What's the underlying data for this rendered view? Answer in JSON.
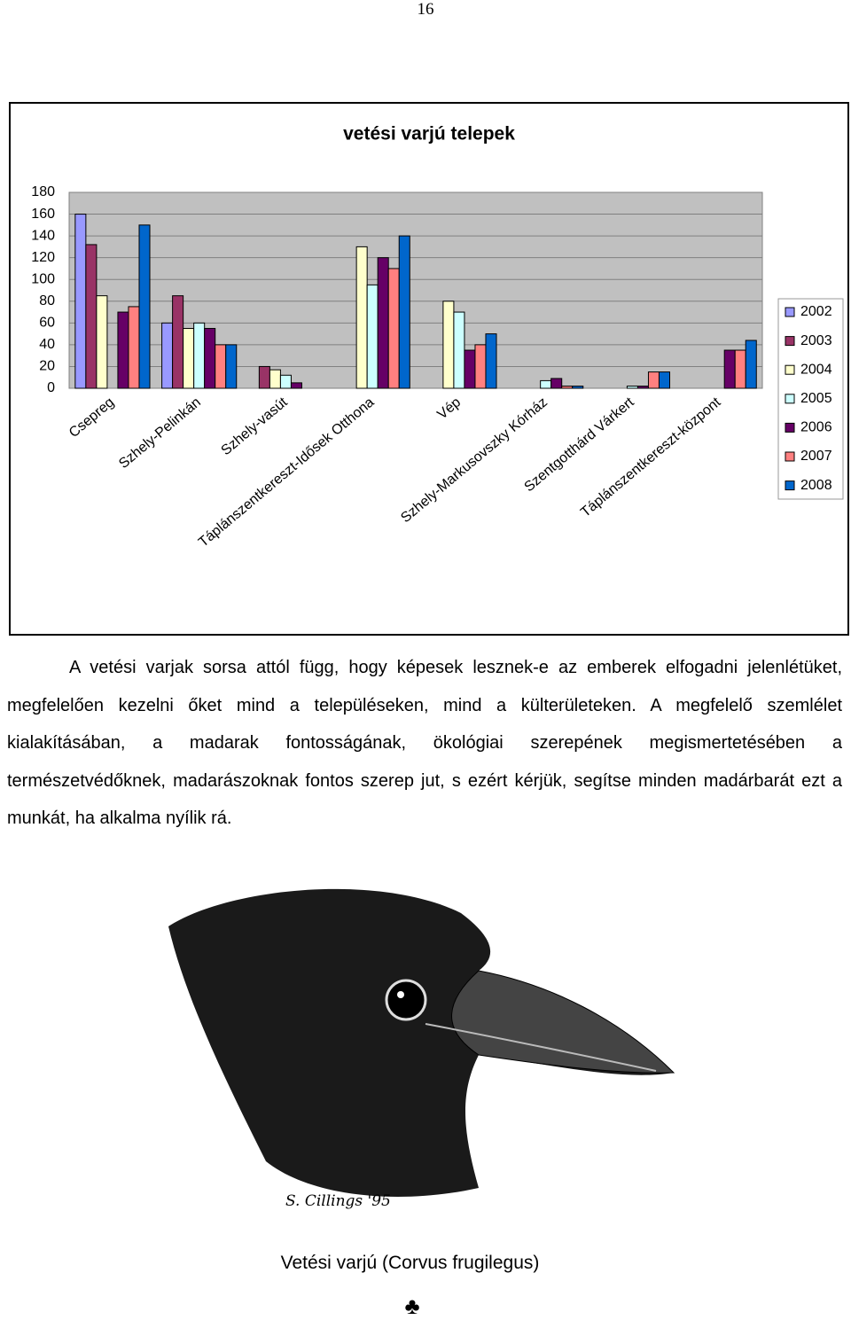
{
  "page_number": "16",
  "chart_data": {
    "type": "bar",
    "title": "vetési varjú telepek",
    "categories": [
      "Csepreg",
      "Szhely-Pelinkán",
      "Szhely-vasút",
      "Táplánszentkereszt-Idősek Otthona",
      "Vép",
      "Szhely-Markusovszky Kórház",
      "Szentgotthárd Várkert",
      "Táplánszentkereszt-központ"
    ],
    "series": [
      {
        "name": "2002",
        "color": "#9999ff",
        "values": [
          160,
          60,
          null,
          null,
          null,
          null,
          null,
          null
        ]
      },
      {
        "name": "2003",
        "color": "#993366",
        "values": [
          132,
          85,
          20,
          null,
          null,
          null,
          null,
          null
        ]
      },
      {
        "name": "2004",
        "color": "#ffffcc",
        "values": [
          85,
          55,
          17,
          130,
          80,
          null,
          null,
          null
        ]
      },
      {
        "name": "2005",
        "color": "#ccffff",
        "values": [
          null,
          60,
          12,
          95,
          70,
          7,
          2,
          null
        ]
      },
      {
        "name": "2006",
        "color": "#660066",
        "values": [
          70,
          55,
          5,
          120,
          35,
          9,
          2,
          35
        ]
      },
      {
        "name": "2007",
        "color": "#ff8080",
        "values": [
          75,
          40,
          null,
          110,
          40,
          2,
          15,
          35
        ]
      },
      {
        "name": "2008",
        "color": "#0066cc",
        "values": [
          150,
          40,
          null,
          140,
          50,
          2,
          15,
          44
        ]
      }
    ],
    "ylim": [
      0,
      180
    ],
    "yticks": [
      0,
      20,
      40,
      60,
      80,
      100,
      120,
      140,
      160,
      180
    ],
    "grid": true,
    "legend": "right"
  },
  "paragraph": "A vetési varjak sorsa attól függ, hogy képesek lesznek-e az emberek elfogadni jelenlétüket, megfelelően kezelni őket mind a településeken, mind a külterületeken. A megfelelő szemlélet kialakításában, a madarak fontosságának, ökológiai szerepének megismertetésében a természetvédőknek, madarászoknak fontos szerep jut, s ezért kérjük, segítse minden madárbarát ezt a munkát, ha alkalma nyílik rá.",
  "signature": "S. Cillings '95",
  "caption": "Vetési varjú (Corvus frugilegus)",
  "ornament": "♣"
}
